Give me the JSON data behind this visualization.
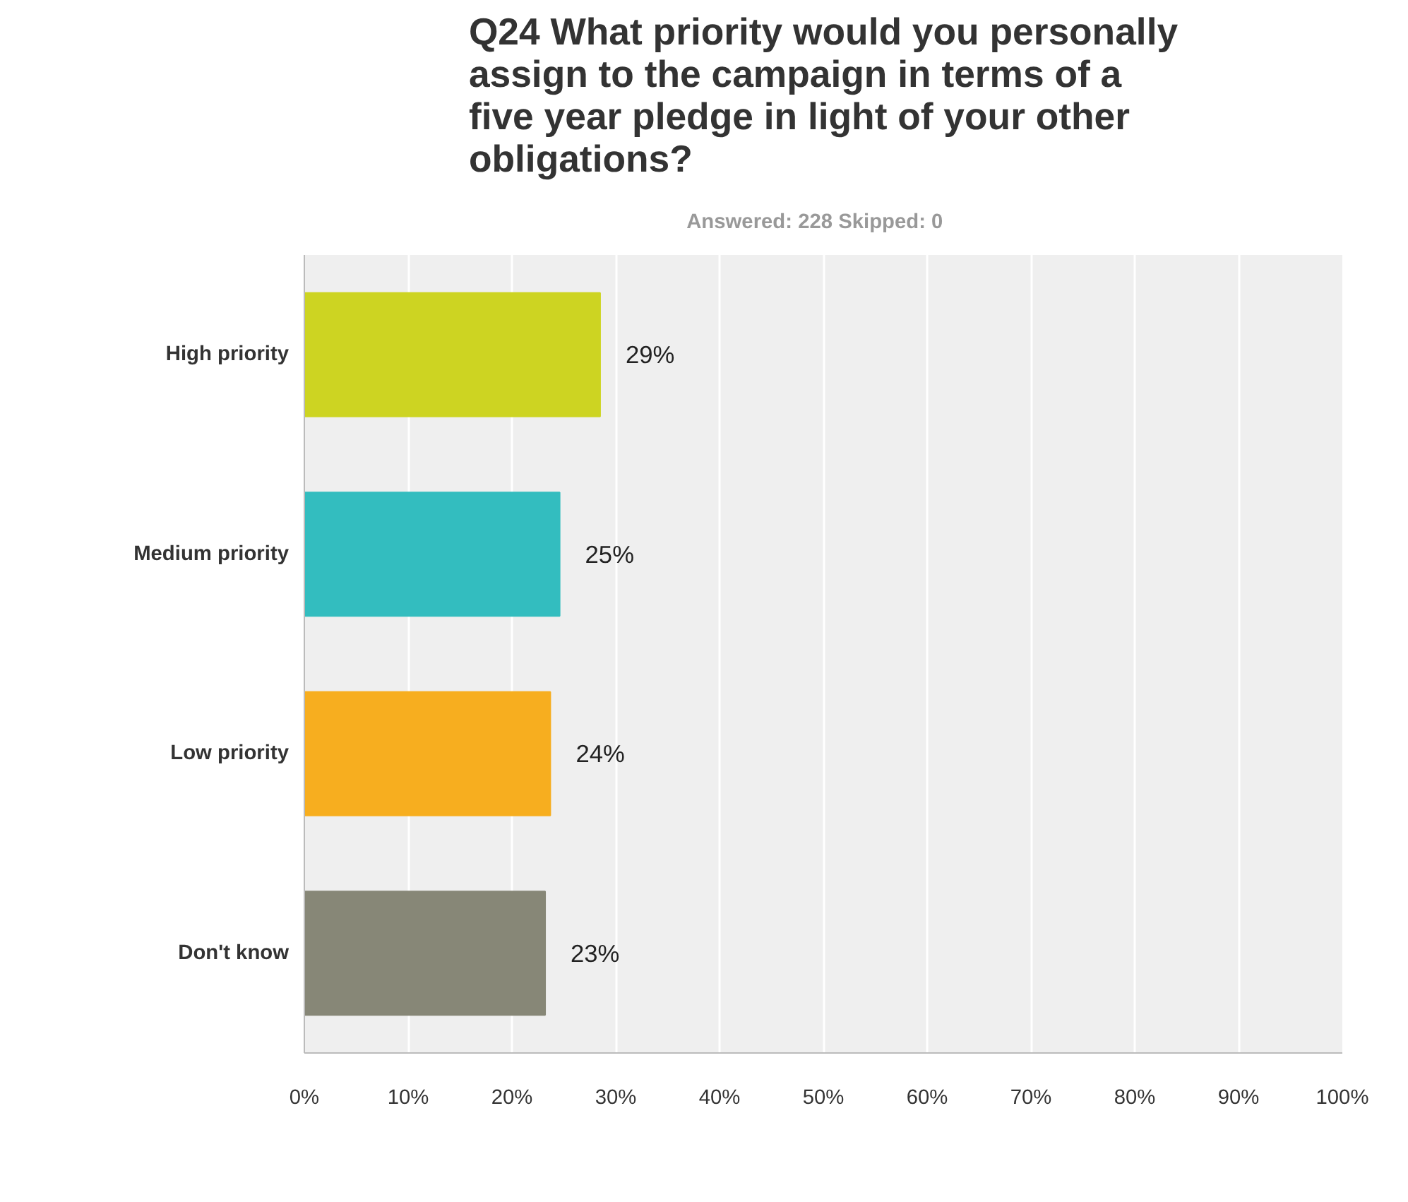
{
  "chart_data": {
    "type": "bar",
    "orientation": "horizontal",
    "title": "Q24 What priority would you personally assign to the campaign in terms of a five year pledge in light of your other obligations?",
    "subtitle": "Answered: 228    Skipped: 0",
    "categories": [
      "High priority",
      "Medium priority",
      "Low priority",
      "Don't know"
    ],
    "values": [
      28.5,
      24.6,
      23.7,
      23.2
    ],
    "colors": [
      "#cdd422",
      "#33bdbf",
      "#f7ae1f",
      "#878777"
    ],
    "value_labels": [
      "29%",
      "25%",
      "24%",
      "23%"
    ],
    "xlim": [
      0,
      100
    ],
    "xticks": [
      {
        "value": 0,
        "label": "0%"
      },
      {
        "value": 10,
        "label": "10%"
      },
      {
        "value": 20,
        "label": "20%"
      },
      {
        "value": 30,
        "label": "30%"
      },
      {
        "value": 40,
        "label": "40%"
      },
      {
        "value": 50,
        "label": "50%"
      },
      {
        "value": 60,
        "label": "60%"
      },
      {
        "value": 70,
        "label": "70%"
      },
      {
        "value": 80,
        "label": "80%"
      },
      {
        "value": 90,
        "label": "90%"
      },
      {
        "value": 100,
        "label": "100%"
      }
    ],
    "grid": "x"
  }
}
